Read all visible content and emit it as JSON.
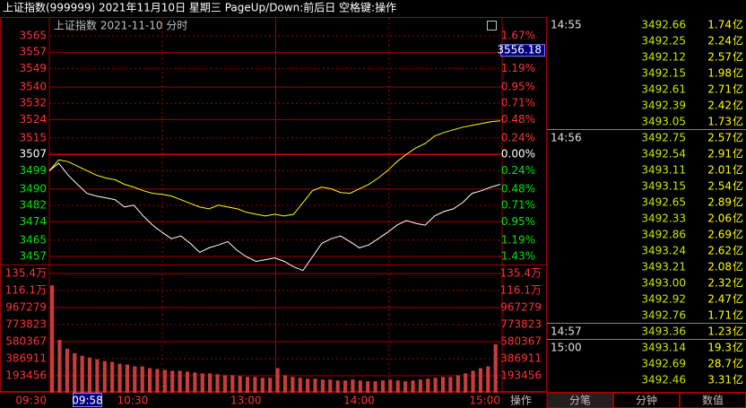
{
  "title_bar": "上证指数(999999) 2021年11月10日 星期三 PageUp/Down:前后日 空格键:操作",
  "chart": {
    "header": "上证指数 2021-11-10 分时",
    "price_ticks": [
      3565,
      3557,
      3549,
      3540,
      3532,
      3524,
      3515,
      3507,
      3499,
      3490,
      3482,
      3474,
      3465,
      3457
    ],
    "pct_labels": [
      "1.67%",
      "1.43%",
      "1.19%",
      "0.95%",
      "0.71%",
      "0.48%",
      "0.24%",
      "0.00%",
      "0.24%",
      "0.48%",
      "0.71%",
      "0.95%",
      "1.19%",
      "1.43%"
    ],
    "cursor_price": "3556.18",
    "volume_ticks": [
      {
        "value": 1354000,
        "label": "135.4万"
      },
      {
        "value": 1161000,
        "label": "116.1万"
      },
      967279,
      773823,
      580367,
      386911,
      193456
    ],
    "time_labels": [
      "09:30",
      "10:30",
      "13:00",
      "14:00",
      "15:00"
    ],
    "cursor_time": "09:58",
    "action": "操作",
    "index_line": {
      "color": "#ffffff",
      "values": [
        3499.0,
        3502.6,
        3496.8,
        3492.3,
        3487.9,
        3486.6,
        3485.7,
        3484.8,
        3481.2,
        3482.1,
        3476.8,
        3472.3,
        3468.8,
        3465.7,
        3467.0,
        3463.4,
        3459.0,
        3461.2,
        3462.6,
        3464.3,
        3459.9,
        3456.8,
        3454.6,
        3455.4,
        3456.3,
        3454.6,
        3451.9,
        3450.1,
        3456.8,
        3463.4,
        3465.7,
        3467.0,
        3464.3,
        3461.2,
        3462.6,
        3465.7,
        3468.8,
        3472.3,
        3474.6,
        3473.2,
        3472.3,
        3476.8,
        3479.0,
        3480.3,
        3483.4,
        3487.9,
        3489.2,
        3491.0,
        3492.3
      ]
    },
    "avg_line": {
      "color": "#ffff00",
      "values": [
        3499.0,
        3504.3,
        3503.4,
        3501.2,
        3499.0,
        3496.8,
        3495.4,
        3494.6,
        3492.3,
        3491.0,
        3489.2,
        3487.9,
        3487.4,
        3486.6,
        3484.8,
        3483.0,
        3481.2,
        3480.3,
        3482.1,
        3481.2,
        3480.3,
        3478.6,
        3477.7,
        3476.8,
        3477.7,
        3476.8,
        3477.7,
        3483.4,
        3489.2,
        3491.0,
        3490.1,
        3488.3,
        3487.9,
        3490.1,
        3492.3,
        3495.4,
        3499.0,
        3503.4,
        3507.0,
        3510.1,
        3512.3,
        3515.9,
        3517.7,
        3519.0,
        3520.3,
        3521.2,
        3522.1,
        3523.0,
        3523.4
      ]
    },
    "volume": {
      "color": "#c83c3c",
      "values": [
        1220000,
        600000,
        500000,
        450000,
        420000,
        400000,
        380000,
        360000,
        350000,
        330000,
        320000,
        300000,
        300000,
        280000,
        270000,
        260000,
        250000,
        250000,
        240000,
        230000,
        220000,
        220000,
        210000,
        200000,
        200000,
        190000,
        180000,
        180000,
        170000,
        170000,
        280000,
        200000,
        180000,
        170000,
        160000,
        160000,
        150000,
        150000,
        140000,
        140000,
        150000,
        140000,
        130000,
        130000,
        140000,
        150000,
        140000,
        130000,
        140000,
        150000,
        160000,
        170000,
        180000,
        180000,
        200000,
        220000,
        250000,
        280000,
        300000,
        550000
      ]
    }
  },
  "trades": {
    "rows": [
      {
        "time": "14:55",
        "price": "3492.66",
        "volume": "1.74",
        "unit": "亿"
      },
      {
        "price": "3492.25",
        "volume": "2.24",
        "unit": "亿"
      },
      {
        "price": "3492.12",
        "volume": "2.57",
        "unit": "亿"
      },
      {
        "price": "3492.15",
        "volume": "1.98",
        "unit": "亿"
      },
      {
        "price": "3492.61",
        "volume": "2.71",
        "unit": "亿"
      },
      {
        "price": "3492.39",
        "volume": "2.42",
        "unit": "亿"
      },
      {
        "price": "3493.05",
        "volume": "1.73",
        "unit": "亿"
      },
      {
        "time": "14:56",
        "price": "3492.75",
        "volume": "2.57",
        "unit": "亿"
      },
      {
        "price": "3492.54",
        "volume": "2.91",
        "unit": "亿"
      },
      {
        "price": "3493.11",
        "volume": "2.01",
        "unit": "亿"
      },
      {
        "price": "3493.15",
        "volume": "2.54",
        "unit": "亿"
      },
      {
        "price": "3492.65",
        "volume": "2.89",
        "unit": "亿"
      },
      {
        "price": "3492.33",
        "volume": "2.06",
        "unit": "亿"
      },
      {
        "price": "3492.86",
        "volume": "2.69",
        "unit": "亿"
      },
      {
        "price": "3493.24",
        "volume": "2.62",
        "unit": "亿"
      },
      {
        "price": "3493.21",
        "volume": "2.08",
        "unit": "亿"
      },
      {
        "price": "3493.00",
        "volume": "2.32",
        "unit": "亿"
      },
      {
        "price": "3492.92",
        "volume": "2.47",
        "unit": "亿"
      },
      {
        "price": "3492.76",
        "volume": "1.71",
        "unit": "亿"
      },
      {
        "time": "14:57",
        "price": "3493.36",
        "volume": "1.23",
        "unit": "亿"
      },
      {
        "time": "15:00",
        "price": "3493.14",
        "volume": "19.3",
        "unit": "亿"
      },
      {
        "price": "3492.69",
        "volume": "28.7",
        "unit": "亿"
      },
      {
        "price": "3492.46",
        "volume": "3.31",
        "unit": "亿"
      }
    ]
  },
  "tabs": [
    "分笔",
    "分钟",
    "数值"
  ]
}
